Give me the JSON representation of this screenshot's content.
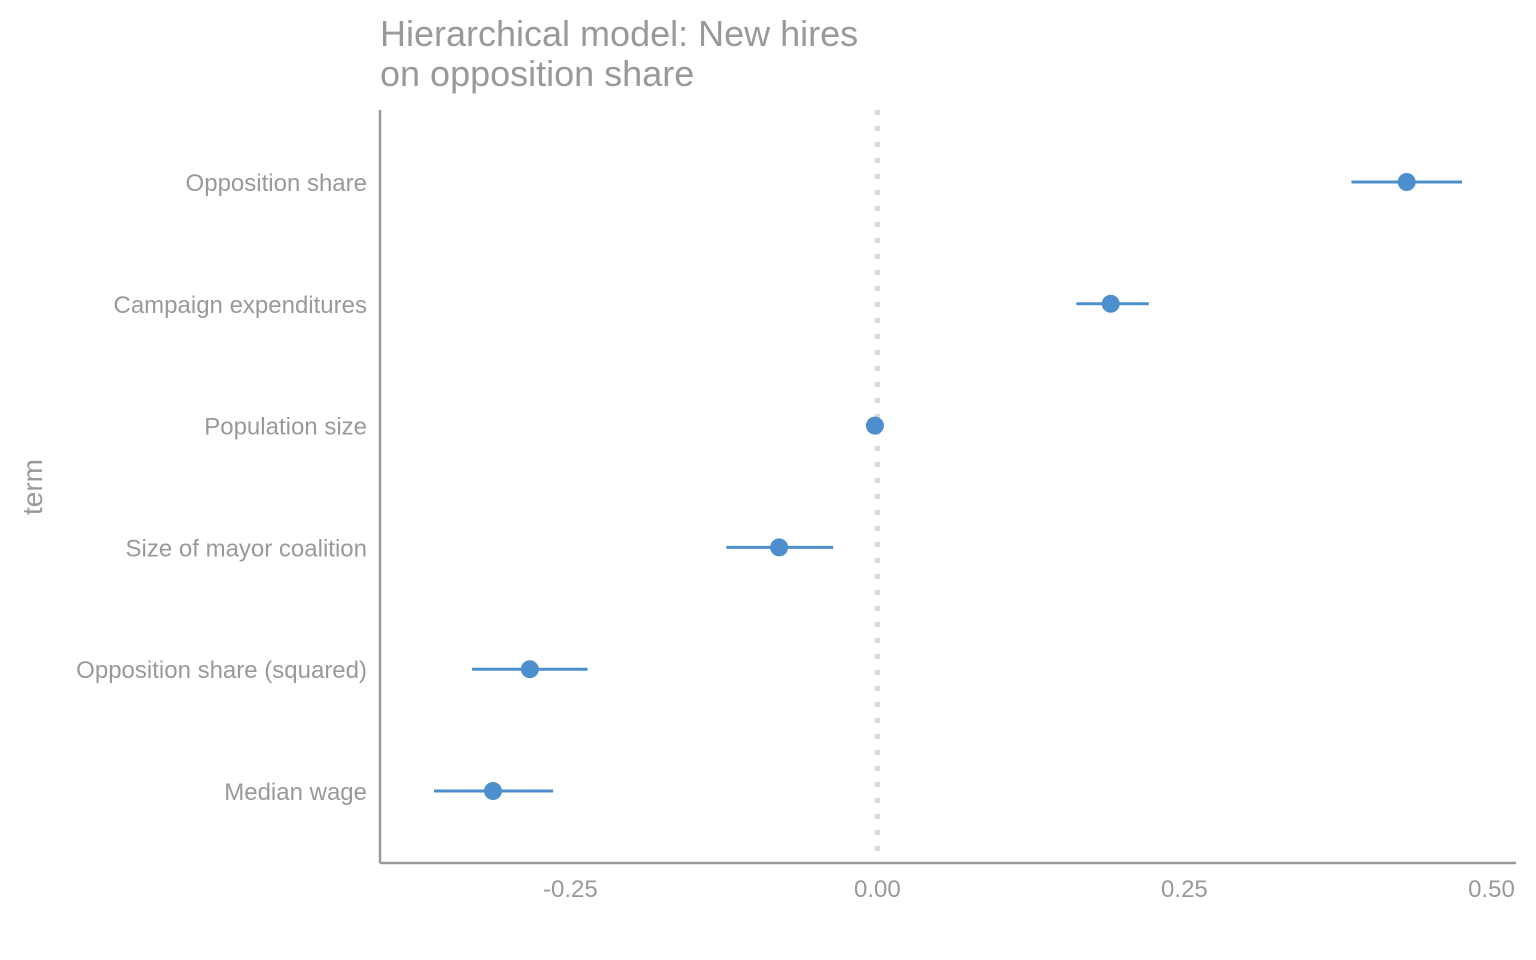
{
  "chart_data": {
    "type": "scatter",
    "subtype": "coefficient-plot",
    "title_lines": [
      "Hierarchical model: New hires",
      "on opposition share"
    ],
    "xlabel": "",
    "ylabel": "term",
    "xlim": [
      -0.405,
      0.52
    ],
    "x_ticks": [
      -0.25,
      0.0,
      0.25,
      0.5
    ],
    "x_tick_labels": [
      "-0.25",
      "0.00",
      "0.25",
      "0.50"
    ],
    "reference_line": {
      "x": 0.0,
      "style": "dotted",
      "color": "#d9d9d9"
    },
    "point_color": "#4d8fcc",
    "axis_color": "#999999",
    "grid": false,
    "categories": [
      "Opposition share",
      "Campaign expenditures",
      "Population size",
      "Size of mayor coalition",
      "Opposition share (squared)",
      "Median wage"
    ],
    "estimates": [
      0.431,
      0.19,
      -0.002,
      -0.08,
      -0.283,
      -0.313
    ],
    "ci_low": [
      0.386,
      0.162,
      -0.002,
      -0.123,
      -0.33,
      -0.361
    ],
    "ci_high": [
      0.476,
      0.221,
      -0.002,
      -0.036,
      -0.236,
      -0.264
    ]
  }
}
